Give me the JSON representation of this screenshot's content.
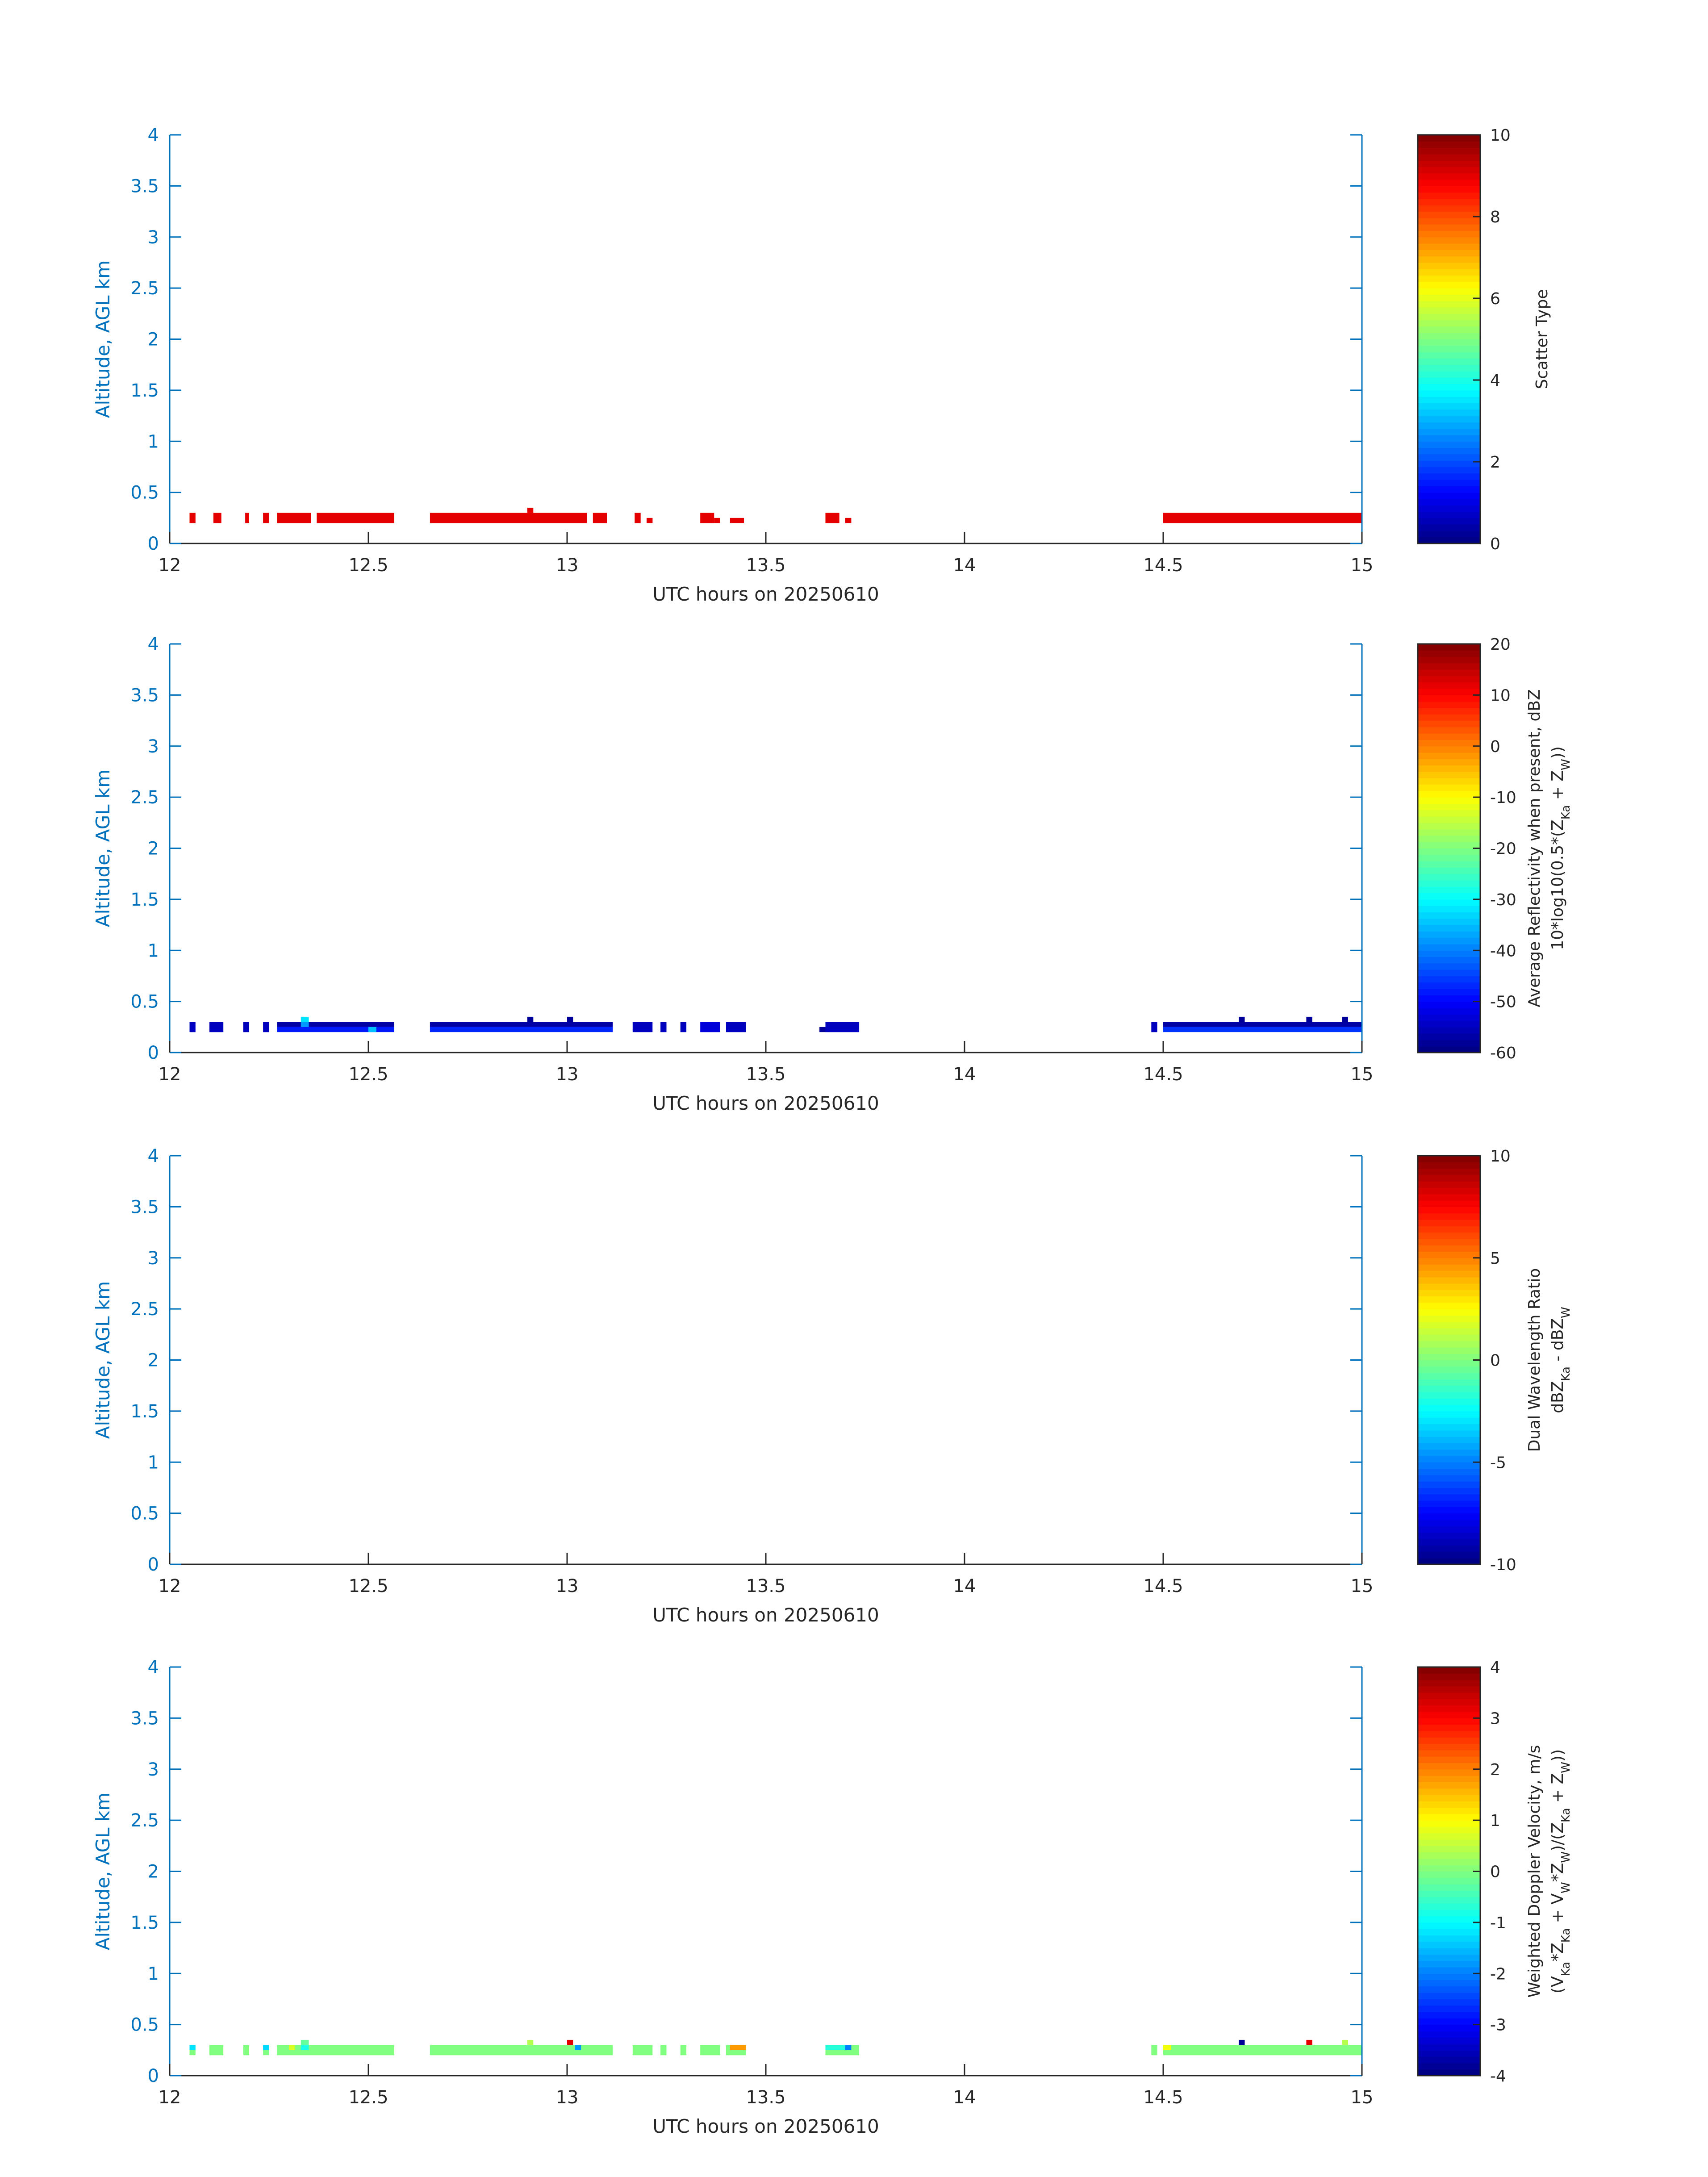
{
  "figure": {
    "title": ""
  },
  "chart_data": [
    {
      "type": "heatmap",
      "title": "",
      "xlabel": "UTC hours on 20250610",
      "ylabel": "Altitude, AGL km",
      "xlim": [
        12,
        15
      ],
      "ylim": [
        0,
        4
      ],
      "xticks": [
        "12",
        "12.5",
        "13",
        "13.5",
        "14",
        "14.5",
        "15"
      ],
      "yticks": [
        "0",
        "0.5",
        "1",
        "1.5",
        "2",
        "2.5",
        "3",
        "3.5",
        "4"
      ],
      "colorbar": {
        "label": "Scatter Type",
        "sublabel": "",
        "range": [
          0,
          10
        ],
        "ticks": [
          "0",
          "2",
          "4",
          "6",
          "8",
          "10"
        ]
      },
      "cells": [
        {
          "x0": 12.05,
          "x1": 12.065,
          "y0": 0.2,
          "y1": 0.3,
          "value": 9
        },
        {
          "x0": 12.11,
          "x1": 12.13,
          "y0": 0.2,
          "y1": 0.3,
          "value": 9
        },
        {
          "x0": 12.19,
          "x1": 12.2,
          "y0": 0.2,
          "y1": 0.3,
          "value": 9
        },
        {
          "x0": 12.235,
          "x1": 12.25,
          "y0": 0.2,
          "y1": 0.3,
          "value": 9
        },
        {
          "x0": 12.27,
          "x1": 12.355,
          "y0": 0.2,
          "y1": 0.3,
          "value": 9
        },
        {
          "x0": 12.37,
          "x1": 12.565,
          "y0": 0.2,
          "y1": 0.3,
          "value": 9
        },
        {
          "x0": 12.655,
          "x1": 13.05,
          "y0": 0.2,
          "y1": 0.3,
          "value": 9
        },
        {
          "x0": 12.9,
          "x1": 12.915,
          "y0": 0.3,
          "y1": 0.35,
          "value": 9
        },
        {
          "x0": 13.065,
          "x1": 13.1,
          "y0": 0.2,
          "y1": 0.3,
          "value": 9
        },
        {
          "x0": 13.17,
          "x1": 13.185,
          "y0": 0.2,
          "y1": 0.3,
          "value": 9
        },
        {
          "x0": 13.2,
          "x1": 13.215,
          "y0": 0.2,
          "y1": 0.25,
          "value": 9
        },
        {
          "x0": 13.335,
          "x1": 13.37,
          "y0": 0.2,
          "y1": 0.3,
          "value": 9
        },
        {
          "x0": 13.37,
          "x1": 13.385,
          "y0": 0.2,
          "y1": 0.25,
          "value": 9
        },
        {
          "x0": 13.41,
          "x1": 13.445,
          "y0": 0.2,
          "y1": 0.25,
          "value": 9
        },
        {
          "x0": 13.65,
          "x1": 13.685,
          "y0": 0.2,
          "y1": 0.3,
          "value": 9
        },
        {
          "x0": 13.7,
          "x1": 13.715,
          "y0": 0.2,
          "y1": 0.25,
          "value": 9
        },
        {
          "x0": 14.5,
          "x1": 15.0,
          "y0": 0.2,
          "y1": 0.3,
          "value": 9
        }
      ]
    },
    {
      "type": "heatmap",
      "title": "",
      "xlabel": "UTC hours on 20250610",
      "ylabel": "Altitude, AGL km",
      "xlim": [
        12,
        15
      ],
      "ylim": [
        0,
        4
      ],
      "xticks": [
        "12",
        "12.5",
        "13",
        "13.5",
        "14",
        "14.5",
        "15"
      ],
      "yticks": [
        "0",
        "0.5",
        "1",
        "1.5",
        "2",
        "2.5",
        "3",
        "3.5",
        "4"
      ],
      "colorbar": {
        "label": "Average Reflectivity when present, dBZ",
        "sublabel": "10*log10(0.5*(Z",
        "range": [
          -60,
          20
        ],
        "ticks": [
          "-60",
          "-50",
          "-40",
          "-30",
          "-20",
          "-10",
          "0",
          "10",
          "20"
        ]
      },
      "cells": [
        {
          "x0": 12.05,
          "x1": 12.065,
          "y0": 0.2,
          "y1": 0.3,
          "value": -55
        },
        {
          "x0": 12.1,
          "x1": 12.135,
          "y0": 0.2,
          "y1": 0.3,
          "value": -55
        },
        {
          "x0": 12.185,
          "x1": 12.2,
          "y0": 0.2,
          "y1": 0.3,
          "value": -55
        },
        {
          "x0": 12.235,
          "x1": 12.25,
          "y0": 0.2,
          "y1": 0.3,
          "value": -55
        },
        {
          "x0": 12.27,
          "x1": 12.565,
          "y0": 0.25,
          "y1": 0.3,
          "value": -57
        },
        {
          "x0": 12.27,
          "x1": 12.565,
          "y0": 0.2,
          "y1": 0.25,
          "value": -48
        },
        {
          "x0": 12.33,
          "x1": 12.35,
          "y0": 0.3,
          "y1": 0.35,
          "value": -32
        },
        {
          "x0": 12.33,
          "x1": 12.35,
          "y0": 0.25,
          "y1": 0.3,
          "value": -38
        },
        {
          "x0": 12.5,
          "x1": 12.52,
          "y0": 0.2,
          "y1": 0.25,
          "value": -35
        },
        {
          "x0": 12.655,
          "x1": 13.115,
          "y0": 0.25,
          "y1": 0.3,
          "value": -57
        },
        {
          "x0": 12.655,
          "x1": 13.115,
          "y0": 0.2,
          "y1": 0.25,
          "value": -47
        },
        {
          "x0": 12.9,
          "x1": 12.915,
          "y0": 0.3,
          "y1": 0.35,
          "value": -58
        },
        {
          "x0": 13.0,
          "x1": 13.015,
          "y0": 0.3,
          "y1": 0.35,
          "value": -58
        },
        {
          "x0": 13.165,
          "x1": 13.215,
          "y0": 0.2,
          "y1": 0.3,
          "value": -55
        },
        {
          "x0": 13.235,
          "x1": 13.25,
          "y0": 0.2,
          "y1": 0.3,
          "value": -55
        },
        {
          "x0": 13.285,
          "x1": 13.3,
          "y0": 0.2,
          "y1": 0.3,
          "value": -55
        },
        {
          "x0": 13.335,
          "x1": 13.385,
          "y0": 0.2,
          "y1": 0.3,
          "value": -53
        },
        {
          "x0": 13.4,
          "x1": 13.45,
          "y0": 0.2,
          "y1": 0.3,
          "value": -55
        },
        {
          "x0": 13.635,
          "x1": 13.65,
          "y0": 0.2,
          "y1": 0.25,
          "value": -58
        },
        {
          "x0": 13.65,
          "x1": 13.735,
          "y0": 0.2,
          "y1": 0.3,
          "value": -55
        },
        {
          "x0": 14.47,
          "x1": 14.485,
          "y0": 0.2,
          "y1": 0.3,
          "value": -55
        },
        {
          "x0": 14.5,
          "x1": 15.0,
          "y0": 0.25,
          "y1": 0.3,
          "value": -57
        },
        {
          "x0": 14.5,
          "x1": 15.0,
          "y0": 0.2,
          "y1": 0.25,
          "value": -46
        },
        {
          "x0": 14.69,
          "x1": 14.705,
          "y0": 0.3,
          "y1": 0.35,
          "value": -58
        },
        {
          "x0": 14.86,
          "x1": 14.875,
          "y0": 0.3,
          "y1": 0.35,
          "value": -58
        },
        {
          "x0": 14.95,
          "x1": 14.965,
          "y0": 0.3,
          "y1": 0.35,
          "value": -58
        }
      ]
    },
    {
      "type": "heatmap",
      "title": "",
      "xlabel": "UTC hours on 20250610",
      "ylabel": "Altitude, AGL km",
      "xlim": [
        12,
        15
      ],
      "ylim": [
        0,
        4
      ],
      "xticks": [
        "12",
        "12.5",
        "13",
        "13.5",
        "14",
        "14.5",
        "15"
      ],
      "yticks": [
        "0",
        "0.5",
        "1",
        "1.5",
        "2",
        "2.5",
        "3",
        "3.5",
        "4"
      ],
      "colorbar": {
        "label": "Dual Wavelength Ratio",
        "sublabel": "dBZ",
        "range": [
          -10,
          10
        ],
        "ticks": [
          "-10",
          "-5",
          "0",
          "5",
          "10"
        ]
      },
      "cells": []
    },
    {
      "type": "heatmap",
      "title": "",
      "xlabel": "UTC hours on 20250610",
      "ylabel": "Altitude, AGL km",
      "xlim": [
        12,
        15
      ],
      "ylim": [
        0,
        4
      ],
      "xticks": [
        "12",
        "12.5",
        "13",
        "13.5",
        "14",
        "14.5",
        "15"
      ],
      "yticks": [
        "0",
        "0.5",
        "1",
        "1.5",
        "2",
        "2.5",
        "3",
        "3.5",
        "4"
      ],
      "colorbar": {
        "label": "Weighted Doppler Velocity, m/s",
        "sublabel": "(V",
        "range": [
          -4,
          4
        ],
        "ticks": [
          "-4",
          "-3",
          "-2",
          "-1",
          "0",
          "1",
          "2",
          "3",
          "4"
        ]
      },
      "cells": [
        {
          "x0": 12.05,
          "x1": 12.065,
          "y0": 0.2,
          "y1": 0.25,
          "value": 0
        },
        {
          "x0": 12.05,
          "x1": 12.065,
          "y0": 0.25,
          "y1": 0.3,
          "value": -1.2
        },
        {
          "x0": 12.1,
          "x1": 12.135,
          "y0": 0.2,
          "y1": 0.3,
          "value": 0
        },
        {
          "x0": 12.185,
          "x1": 12.2,
          "y0": 0.2,
          "y1": 0.3,
          "value": 0
        },
        {
          "x0": 12.235,
          "x1": 12.25,
          "y0": 0.2,
          "y1": 0.25,
          "value": 0
        },
        {
          "x0": 12.235,
          "x1": 12.25,
          "y0": 0.25,
          "y1": 0.3,
          "value": -1.3
        },
        {
          "x0": 12.27,
          "x1": 12.565,
          "y0": 0.2,
          "y1": 0.3,
          "value": 0
        },
        {
          "x0": 12.3,
          "x1": 12.315,
          "y0": 0.25,
          "y1": 0.3,
          "value": 0.7
        },
        {
          "x0": 12.33,
          "x1": 12.35,
          "y0": 0.3,
          "y1": 0.35,
          "value": -0.2
        },
        {
          "x0": 12.33,
          "x1": 12.35,
          "y0": 0.25,
          "y1": 0.3,
          "value": -0.8
        },
        {
          "x0": 12.655,
          "x1": 13.115,
          "y0": 0.2,
          "y1": 0.3,
          "value": 0
        },
        {
          "x0": 12.9,
          "x1": 12.915,
          "y0": 0.3,
          "y1": 0.35,
          "value": 0.4
        },
        {
          "x0": 13.0,
          "x1": 13.015,
          "y0": 0.3,
          "y1": 0.35,
          "value": 3.2
        },
        {
          "x0": 13.02,
          "x1": 13.035,
          "y0": 0.25,
          "y1": 0.3,
          "value": -1.8
        },
        {
          "x0": 13.165,
          "x1": 13.215,
          "y0": 0.2,
          "y1": 0.3,
          "value": 0
        },
        {
          "x0": 13.235,
          "x1": 13.25,
          "y0": 0.2,
          "y1": 0.3,
          "value": 0
        },
        {
          "x0": 13.285,
          "x1": 13.3,
          "y0": 0.2,
          "y1": 0.3,
          "value": 0
        },
        {
          "x0": 13.335,
          "x1": 13.385,
          "y0": 0.2,
          "y1": 0.3,
          "value": 0
        },
        {
          "x0": 13.4,
          "x1": 13.45,
          "y0": 0.2,
          "y1": 0.3,
          "value": 0
        },
        {
          "x0": 13.41,
          "x1": 13.45,
          "y0": 0.25,
          "y1": 0.3,
          "value": 1.8
        },
        {
          "x0": 13.65,
          "x1": 13.735,
          "y0": 0.2,
          "y1": 0.3,
          "value": 0
        },
        {
          "x0": 13.65,
          "x1": 13.7,
          "y0": 0.25,
          "y1": 0.3,
          "value": -0.7
        },
        {
          "x0": 13.7,
          "x1": 13.715,
          "y0": 0.25,
          "y1": 0.3,
          "value": -2
        },
        {
          "x0": 14.47,
          "x1": 14.485,
          "y0": 0.2,
          "y1": 0.3,
          "value": 0
        },
        {
          "x0": 14.5,
          "x1": 15.0,
          "y0": 0.2,
          "y1": 0.3,
          "value": 0
        },
        {
          "x0": 14.5,
          "x1": 14.52,
          "y0": 0.25,
          "y1": 0.3,
          "value": 0.9
        },
        {
          "x0": 14.69,
          "x1": 14.705,
          "y0": 0.3,
          "y1": 0.35,
          "value": -3.8
        },
        {
          "x0": 14.86,
          "x1": 14.875,
          "y0": 0.3,
          "y1": 0.35,
          "value": 3.2
        },
        {
          "x0": 14.95,
          "x1": 14.965,
          "y0": 0.3,
          "y1": 0.35,
          "value": 0.4
        }
      ]
    }
  ]
}
